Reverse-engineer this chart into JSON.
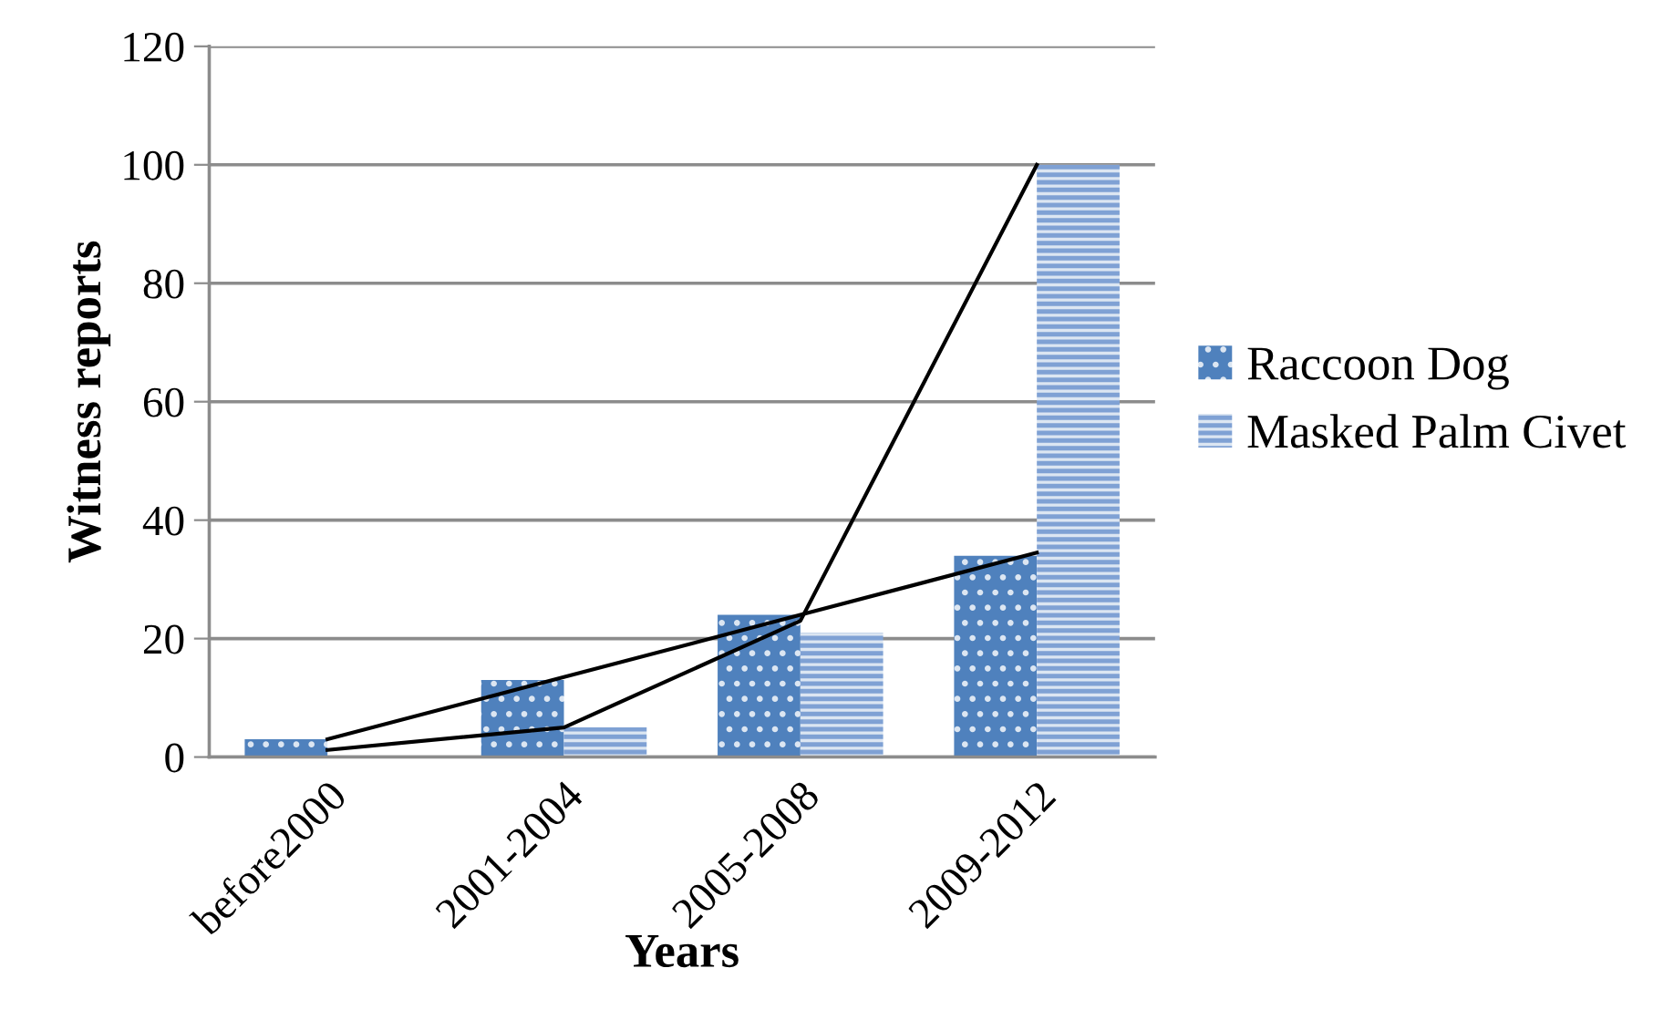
{
  "chart_data": {
    "type": "bar",
    "xlabel": "Years",
    "ylabel": "Witness reports",
    "categories": [
      "before2000",
      "2001-2004",
      "2005-2008",
      "2009-2012"
    ],
    "series": [
      {
        "name": "Raccoon Dog",
        "color": "#4f81bd",
        "values": [
          3,
          13,
          24,
          34
        ]
      },
      {
        "name": "Masked Palm Civet",
        "color": "#7fa1d4",
        "values": [
          0,
          5,
          21,
          100
        ]
      },
      {
        "type": "line",
        "color": "#000000",
        "x": [
          "before2000",
          "2001-2004",
          "2005-2008",
          "2009-2012"
        ],
        "values": [
          3,
          13.5,
          24,
          34.5
        ]
      },
      {
        "type": "line",
        "color": "#000000",
        "x": [
          "before2000",
          "2001-2004",
          "2005-2008",
          "2009-2012"
        ],
        "values": [
          1.2,
          5,
          23,
          100
        ]
      }
    ],
    "ylim": [
      0,
      120
    ],
    "yticks": [
      0,
      20,
      40,
      60,
      80,
      100,
      120
    ],
    "grid": "y",
    "legend": "right",
    "line_style": "solid",
    "marker": "none"
  }
}
